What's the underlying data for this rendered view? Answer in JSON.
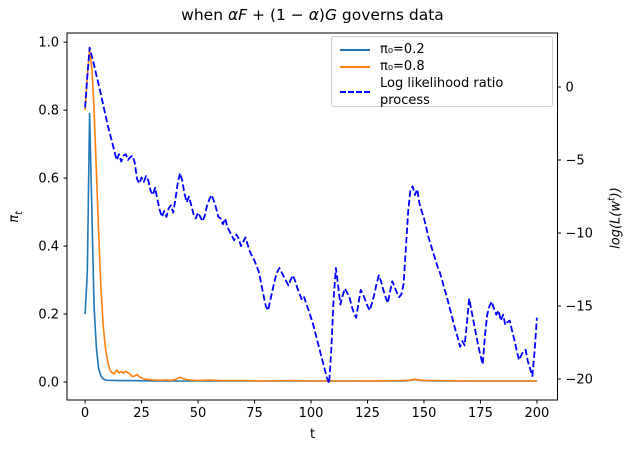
{
  "figure": {
    "background": "#ffffff",
    "frame_color": "#000000"
  },
  "title": {
    "full": "when αF + (1 − α)G governs data",
    "parts": [
      {
        "text": "when ",
        "italic": false
      },
      {
        "text": "αF",
        "italic": true
      },
      {
        "text": " + (1 − ",
        "italic": false
      },
      {
        "text": "α",
        "italic": true
      },
      {
        "text": ")",
        "italic": false
      },
      {
        "text": "G",
        "italic": true
      },
      {
        "text": " governs data",
        "italic": false
      }
    ]
  },
  "legend": {
    "position": "upper right",
    "items": [
      {
        "label": "π₀=0.2",
        "color": "#1f77b4",
        "dashed": false
      },
      {
        "label": "π₀=0.8",
        "color": "#ff7f0e",
        "dashed": false
      },
      {
        "label": "Log likelihood ratio process",
        "color": "#0000ff",
        "dashed": true
      }
    ]
  },
  "chart_data": {
    "type": "line",
    "title": "when αF + (1 − α)G governs data",
    "xlabel": "t",
    "ylabel_left": "πt",
    "ylabel_left_main": "π",
    "ylabel_left_sub": "t",
    "ylabel_right": "log(L(w^t))",
    "ylabel_right_pre": "log(L(w",
    "ylabel_right_sup": "t",
    "ylabel_right_post": "))",
    "grid": false,
    "xlim": [
      -8,
      209.1
    ],
    "ylim_left": [
      -0.053,
      1.027
    ],
    "ylim_right": [
      -21.44,
      3.7
    ],
    "xticks": [
      {
        "v": 0,
        "l": "0"
      },
      {
        "v": 25,
        "l": "25"
      },
      {
        "v": 50,
        "l": "50"
      },
      {
        "v": 75,
        "l": "75"
      },
      {
        "v": 100,
        "l": "100"
      },
      {
        "v": 125,
        "l": "125"
      },
      {
        "v": 150,
        "l": "150"
      },
      {
        "v": 175,
        "l": "175"
      },
      {
        "v": 200,
        "l": "200"
      }
    ],
    "yticks_left": [
      {
        "v": 0.0,
        "l": "0.0"
      },
      {
        "v": 0.2,
        "l": "0.2"
      },
      {
        "v": 0.4,
        "l": "0.4"
      },
      {
        "v": 0.6,
        "l": "0.6"
      },
      {
        "v": 0.8,
        "l": "0.8"
      },
      {
        "v": 1.0,
        "l": "1.0"
      }
    ],
    "yticks_right": [
      {
        "v": 0,
        "l": "0"
      },
      {
        "v": -5,
        "l": "−5"
      },
      {
        "v": -10,
        "l": "−10"
      },
      {
        "v": -15,
        "l": "−15"
      },
      {
        "v": -20,
        "l": "−20"
      }
    ],
    "series": [
      {
        "name": "π₀=0.2",
        "axis": "left",
        "color": "#1f77b4",
        "style": "solid",
        "points": [
          [
            0,
            0.2
          ],
          [
            1,
            0.32
          ],
          [
            2,
            0.79
          ],
          [
            3,
            0.5
          ],
          [
            4,
            0.22
          ],
          [
            5,
            0.1
          ],
          [
            6,
            0.04
          ],
          [
            7,
            0.018
          ],
          [
            8,
            0.009
          ],
          [
            9,
            0.006
          ],
          [
            10,
            0.005
          ],
          [
            15,
            0.004
          ],
          [
            20,
            0.004
          ],
          [
            30,
            0.003
          ],
          [
            60,
            0.003
          ],
          [
            100,
            0.003
          ],
          [
            140,
            0.003
          ],
          [
            143,
            0.004
          ],
          [
            146,
            0.007
          ],
          [
            149,
            0.004
          ],
          [
            155,
            0.003
          ],
          [
            200,
            0.003
          ]
        ]
      },
      {
        "name": "π₀=0.8",
        "axis": "left",
        "color": "#ff7f0e",
        "style": "solid",
        "points": [
          [
            0,
            0.8
          ],
          [
            1,
            0.9
          ],
          [
            2,
            0.98
          ],
          [
            3,
            0.92
          ],
          [
            4,
            0.8
          ],
          [
            5,
            0.62
          ],
          [
            6,
            0.44
          ],
          [
            7,
            0.28
          ],
          [
            8,
            0.17
          ],
          [
            9,
            0.1
          ],
          [
            10,
            0.06
          ],
          [
            11,
            0.035
          ],
          [
            12,
            0.027
          ],
          [
            13,
            0.024
          ],
          [
            14,
            0.035
          ],
          [
            15,
            0.027
          ],
          [
            16,
            0.031
          ],
          [
            17,
            0.026
          ],
          [
            18,
            0.032
          ],
          [
            19,
            0.027
          ],
          [
            20,
            0.022
          ],
          [
            21,
            0.016
          ],
          [
            22,
            0.018
          ],
          [
            23,
            0.022
          ],
          [
            24,
            0.016
          ],
          [
            25,
            0.012
          ],
          [
            26,
            0.009
          ],
          [
            28,
            0.007
          ],
          [
            30,
            0.006
          ],
          [
            33,
            0.005
          ],
          [
            36,
            0.006
          ],
          [
            38,
            0.005
          ],
          [
            40,
            0.007
          ],
          [
            42,
            0.014
          ],
          [
            43,
            0.011
          ],
          [
            45,
            0.007
          ],
          [
            48,
            0.005
          ],
          [
            50,
            0.004
          ],
          [
            55,
            0.006
          ],
          [
            57,
            0.005
          ],
          [
            60,
            0.004
          ],
          [
            70,
            0.004
          ],
          [
            80,
            0.003
          ],
          [
            90,
            0.004
          ],
          [
            100,
            0.003
          ],
          [
            120,
            0.003
          ],
          [
            140,
            0.004
          ],
          [
            143,
            0.005
          ],
          [
            146,
            0.008
          ],
          [
            149,
            0.005
          ],
          [
            155,
            0.004
          ],
          [
            170,
            0.003
          ],
          [
            200,
            0.003
          ]
        ]
      },
      {
        "name": "Log likelihood ratio process",
        "axis": "right",
        "color": "#0000ff",
        "style": "dashed",
        "points": [
          [
            0,
            -1.4
          ],
          [
            1,
            0.7
          ],
          [
            2,
            2.7
          ],
          [
            3,
            2.1
          ],
          [
            4,
            1.5
          ],
          [
            5,
            0.8
          ],
          [
            6,
            0.2
          ],
          [
            7,
            -0.5
          ],
          [
            8,
            -1.2
          ],
          [
            9,
            -1.9
          ],
          [
            10,
            -2.6
          ],
          [
            11,
            -3.2
          ],
          [
            12,
            -3.8
          ],
          [
            13,
            -4.4
          ],
          [
            14,
            -5.0
          ],
          [
            15,
            -4.6
          ],
          [
            16,
            -5.1
          ],
          [
            17,
            -4.7
          ],
          [
            18,
            -4.6
          ],
          [
            19,
            -5.0
          ],
          [
            20,
            -4.8
          ],
          [
            21,
            -4.7
          ],
          [
            22,
            -5.2
          ],
          [
            23,
            -6.3
          ],
          [
            24,
            -6.6
          ],
          [
            25,
            -6.2
          ],
          [
            26,
            -6.5
          ],
          [
            27,
            -6.1
          ],
          [
            28,
            -6.4
          ],
          [
            29,
            -7.1
          ],
          [
            30,
            -7.4
          ],
          [
            31,
            -6.9
          ],
          [
            32,
            -7.7
          ],
          [
            33,
            -8.4
          ],
          [
            34,
            -8.9
          ],
          [
            35,
            -8.5
          ],
          [
            36,
            -8.9
          ],
          [
            37,
            -8.3
          ],
          [
            38,
            -8.1
          ],
          [
            39,
            -8.6
          ],
          [
            40,
            -7.7
          ],
          [
            41,
            -6.6
          ],
          [
            42,
            -5.9
          ],
          [
            43,
            -6.4
          ],
          [
            44,
            -7.3
          ],
          [
            45,
            -7.9
          ],
          [
            46,
            -7.5
          ],
          [
            47,
            -8.1
          ],
          [
            48,
            -8.7
          ],
          [
            49,
            -9.0
          ],
          [
            50,
            -8.6
          ],
          [
            51,
            -8.9
          ],
          [
            52,
            -9.2
          ],
          [
            53,
            -8.8
          ],
          [
            54,
            -8.1
          ],
          [
            55,
            -7.7
          ],
          [
            56,
            -7.4
          ],
          [
            57,
            -7.8
          ],
          [
            58,
            -8.3
          ],
          [
            59,
            -8.9
          ],
          [
            60,
            -9.0
          ],
          [
            61,
            -9.4
          ],
          [
            62,
            -9.0
          ],
          [
            63,
            -9.6
          ],
          [
            64,
            -9.9
          ],
          [
            65,
            -10.2
          ],
          [
            66,
            -10.5
          ],
          [
            67,
            -10.1
          ],
          [
            68,
            -10.4
          ],
          [
            69,
            -10.9
          ],
          [
            70,
            -10.6
          ],
          [
            71,
            -10.3
          ],
          [
            72,
            -10.8
          ],
          [
            73,
            -11.3
          ],
          [
            74,
            -11.6
          ],
          [
            75,
            -11.9
          ],
          [
            76,
            -12.3
          ],
          [
            77,
            -12.7
          ],
          [
            78,
            -13.5
          ],
          [
            79,
            -14.3
          ],
          [
            80,
            -15.0
          ],
          [
            81,
            -15.3
          ],
          [
            82,
            -14.6
          ],
          [
            83,
            -13.9
          ],
          [
            84,
            -13.2
          ],
          [
            85,
            -12.7
          ],
          [
            86,
            -12.4
          ],
          [
            87,
            -12.7
          ],
          [
            88,
            -13.0
          ],
          [
            89,
            -13.3
          ],
          [
            90,
            -13.6
          ],
          [
            91,
            -13.2
          ],
          [
            92,
            -12.9
          ],
          [
            93,
            -13.3
          ],
          [
            94,
            -13.8
          ],
          [
            95,
            -14.2
          ],
          [
            96,
            -14.6
          ],
          [
            97,
            -14.4
          ],
          [
            98,
            -14.9
          ],
          [
            99,
            -15.3
          ],
          [
            100,
            -15.8
          ],
          [
            101,
            -16.3
          ],
          [
            102,
            -16.9
          ],
          [
            103,
            -17.5
          ],
          [
            104,
            -18.1
          ],
          [
            105,
            -18.7
          ],
          [
            106,
            -19.3
          ],
          [
            107,
            -19.9
          ],
          [
            108,
            -20.3
          ],
          [
            109,
            -18.0
          ],
          [
            110,
            -14.5
          ],
          [
            111,
            -12.4
          ],
          [
            112,
            -13.6
          ],
          [
            113,
            -14.9
          ],
          [
            114,
            -14.3
          ],
          [
            115,
            -13.8
          ],
          [
            116,
            -14.1
          ],
          [
            117,
            -14.4
          ],
          [
            118,
            -15.0
          ],
          [
            119,
            -15.5
          ],
          [
            120,
            -15.8
          ],
          [
            121,
            -14.8
          ],
          [
            122,
            -13.9
          ],
          [
            123,
            -14.2
          ],
          [
            124,
            -14.6
          ],
          [
            125,
            -15.0
          ],
          [
            126,
            -15.3
          ],
          [
            127,
            -14.8
          ],
          [
            128,
            -14.2
          ],
          [
            129,
            -13.5
          ],
          [
            130,
            -12.9
          ],
          [
            131,
            -13.3
          ],
          [
            132,
            -13.9
          ],
          [
            133,
            -14.4
          ],
          [
            134,
            -14.8
          ],
          [
            135,
            -14.0
          ],
          [
            136,
            -13.3
          ],
          [
            137,
            -13.7
          ],
          [
            138,
            -14.1
          ],
          [
            139,
            -14.4
          ],
          [
            140,
            -14.2
          ],
          [
            141,
            -13.5
          ],
          [
            142,
            -11.0
          ],
          [
            143,
            -8.5
          ],
          [
            144,
            -7.1
          ],
          [
            145,
            -6.8
          ],
          [
            146,
            -7.4
          ],
          [
            147,
            -7.0
          ],
          [
            148,
            -8.0
          ],
          [
            149,
            -8.5
          ],
          [
            150,
            -9.0
          ],
          [
            151,
            -9.6
          ],
          [
            152,
            -10.3
          ],
          [
            153,
            -10.8
          ],
          [
            154,
            -11.3
          ],
          [
            155,
            -11.8
          ],
          [
            156,
            -12.3
          ],
          [
            157,
            -12.7
          ],
          [
            158,
            -13.2
          ],
          [
            159,
            -13.8
          ],
          [
            160,
            -14.3
          ],
          [
            161,
            -14.9
          ],
          [
            162,
            -15.5
          ],
          [
            163,
            -16.1
          ],
          [
            164,
            -16.7
          ],
          [
            165,
            -17.2
          ],
          [
            166,
            -17.8
          ],
          [
            167,
            -17.4
          ],
          [
            168,
            -17.7
          ],
          [
            169,
            -16.2
          ],
          [
            170,
            -14.5
          ],
          [
            171,
            -15.3
          ],
          [
            172,
            -16.1
          ],
          [
            173,
            -16.9
          ],
          [
            174,
            -17.7
          ],
          [
            175,
            -18.4
          ],
          [
            176,
            -19.0
          ],
          [
            177,
            -17.0
          ],
          [
            178,
            -15.6
          ],
          [
            179,
            -15.0
          ],
          [
            180,
            -14.7
          ],
          [
            181,
            -15.2
          ],
          [
            182,
            -15.6
          ],
          [
            183,
            -15.3
          ],
          [
            184,
            -16.0
          ],
          [
            185,
            -15.6
          ],
          [
            186,
            -16.3
          ],
          [
            187,
            -16.1
          ],
          [
            188,
            -16.0
          ],
          [
            189,
            -16.7
          ],
          [
            190,
            -17.3
          ],
          [
            191,
            -18.0
          ],
          [
            192,
            -18.7
          ],
          [
            193,
            -18.4
          ],
          [
            194,
            -18.1
          ],
          [
            195,
            -18.0
          ],
          [
            196,
            -18.8
          ],
          [
            197,
            -19.3
          ],
          [
            198,
            -19.8
          ],
          [
            199,
            -18.0
          ],
          [
            200,
            -15.8
          ]
        ]
      }
    ]
  }
}
